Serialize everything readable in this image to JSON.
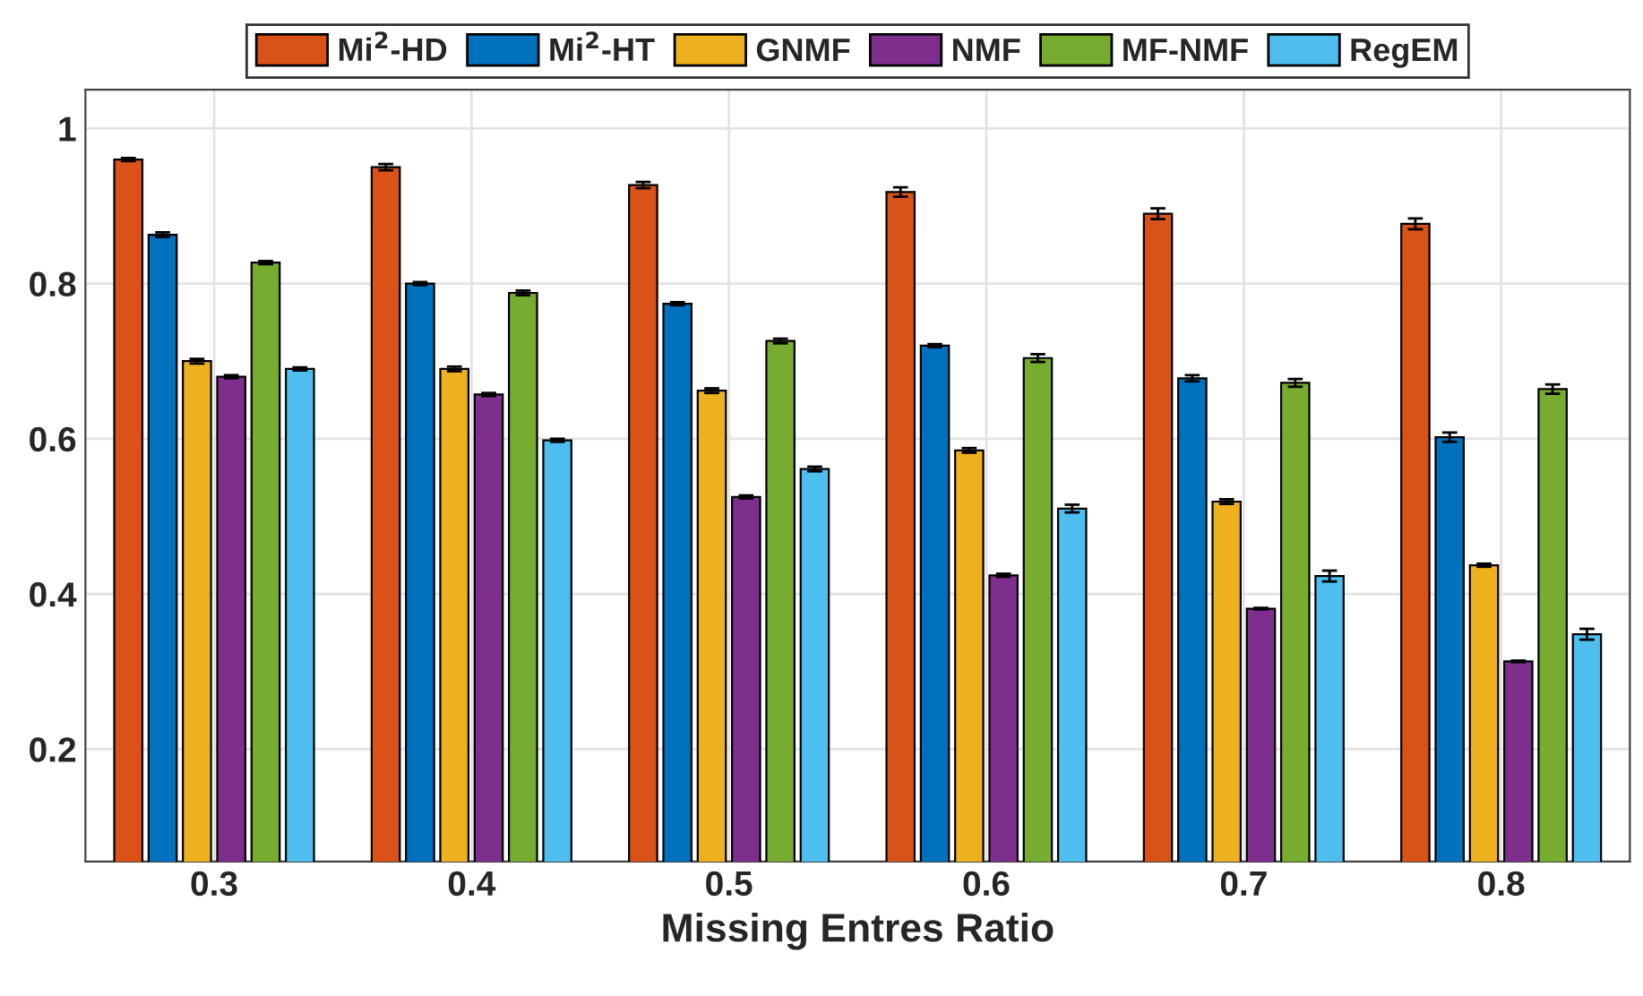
{
  "chart_data": {
    "type": "bar",
    "xlabel": "Missing Entres Ratio",
    "categories": [
      "0.3",
      "0.4",
      "0.5",
      "0.6",
      "0.7",
      "0.8"
    ],
    "series": [
      {
        "name": "Mi$^{2}$-HD",
        "color": "#d95319",
        "values": [
          0.96,
          0.95,
          0.927,
          0.918,
          0.89,
          0.877
        ],
        "errors": [
          0.002,
          0.004,
          0.004,
          0.006,
          0.007,
          0.007
        ]
      },
      {
        "name": "Mi$^{2}$-HT",
        "color": "#0072bd",
        "values": [
          0.863,
          0.8,
          0.774,
          0.72,
          0.678,
          0.602
        ],
        "errors": [
          0.003,
          0.002,
          0.002,
          0.002,
          0.004,
          0.006
        ]
      },
      {
        "name": "GNMF",
        "color": "#edb120",
        "values": [
          0.7,
          0.69,
          0.662,
          0.585,
          0.519,
          0.437
        ],
        "errors": [
          0.003,
          0.003,
          0.003,
          0.003,
          0.003,
          0.002
        ]
      },
      {
        "name": "NMF",
        "color": "#7e2f8e",
        "values": [
          0.68,
          0.657,
          0.525,
          0.424,
          0.381,
          0.313
        ],
        "errors": [
          0.002,
          0.002,
          0.002,
          0.002,
          0.001,
          0.001
        ]
      },
      {
        "name": "MF-NMF",
        "color": "#77ac30",
        "values": [
          0.827,
          0.788,
          0.726,
          0.704,
          0.672,
          0.664
        ],
        "errors": [
          0.002,
          0.003,
          0.003,
          0.005,
          0.005,
          0.006
        ]
      },
      {
        "name": "RegEM",
        "color": "#4dbeee",
        "values": [
          0.69,
          0.598,
          0.561,
          0.51,
          0.423,
          0.348
        ],
        "errors": [
          0.002,
          0.002,
          0.003,
          0.005,
          0.007,
          0.007
        ]
      }
    ],
    "ylim": [
      0.055,
      1.05
    ],
    "yticks": [
      0.2,
      0.4,
      0.6,
      0.8,
      1
    ],
    "grid": true,
    "legend": "top"
  }
}
